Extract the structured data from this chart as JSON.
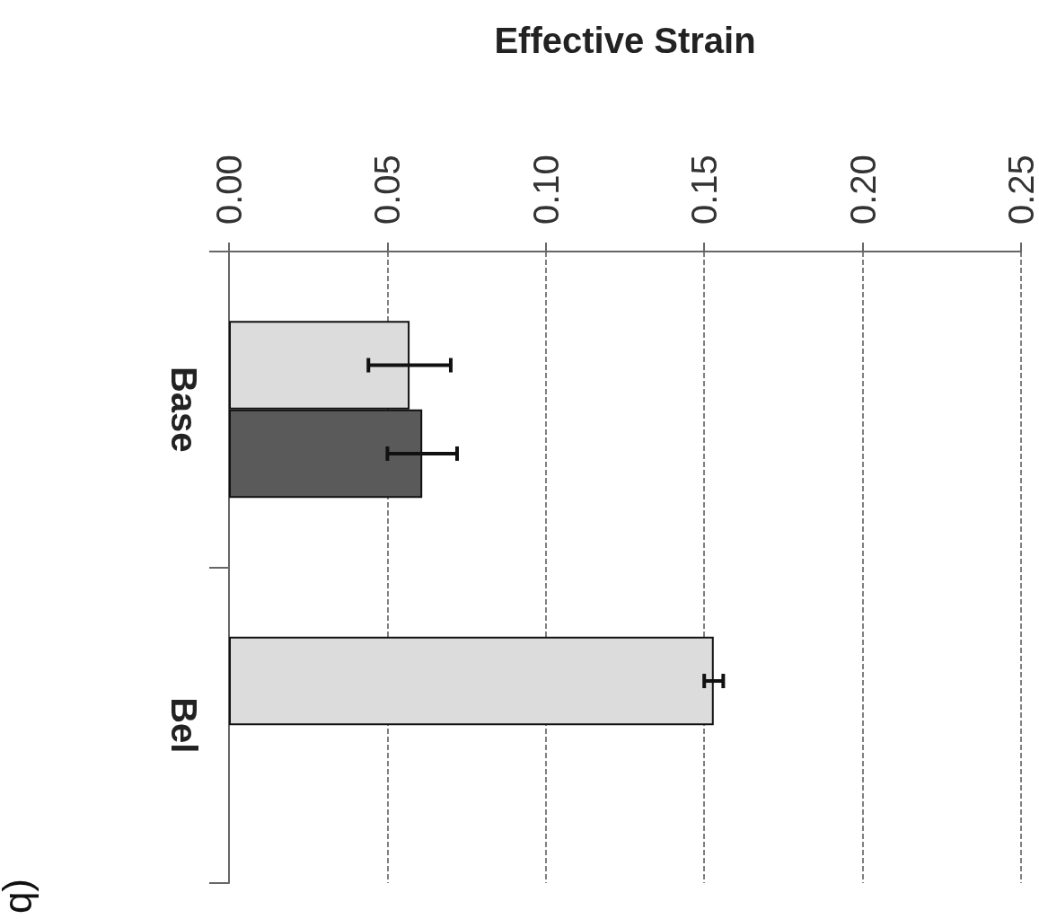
{
  "chart_data": {
    "type": "bar",
    "orientation": "horizontal",
    "xlabel": "Effective Strain",
    "categories": [
      "Base",
      "Bel"
    ],
    "series": [
      {
        "color": "#dcdcdc",
        "values": [
          0.057,
          0.153
        ],
        "errors": [
          0.013,
          0.003
        ]
      },
      {
        "color": "#5a5a5a",
        "values": [
          0.061,
          null
        ],
        "errors": [
          0.011,
          null
        ]
      }
    ],
    "xlim": [
      0,
      0.25
    ],
    "xticks": [
      {
        "value": 0,
        "label": "0.00"
      },
      {
        "value": 0.05,
        "label": "0.05"
      },
      {
        "value": 0.1,
        "label": "0.10"
      },
      {
        "value": 0.15,
        "label": "0.15"
      },
      {
        "value": 0.2,
        "label": "0.20"
      },
      {
        "value": 0.25,
        "label": "0.25"
      }
    ],
    "grid": "x",
    "annotations": [
      "(b"
    ]
  }
}
